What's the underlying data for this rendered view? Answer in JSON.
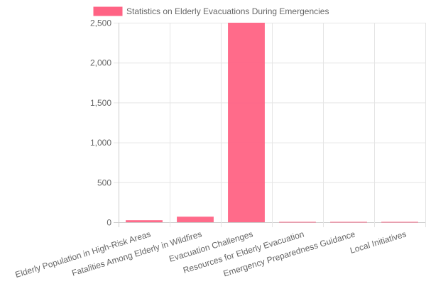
{
  "chart_data": {
    "type": "bar",
    "title": "",
    "legend": {
      "label": "Statistics on Elderly Evacuations During Emergencies",
      "position": "top"
    },
    "categories": [
      "Elderly Population in High-Risk Areas",
      "Fatalities Among Elderly in Wildfires",
      "Evacuation Challenges",
      "Resources for Elderly Evacuation",
      "Emergency Preparedness Guidance",
      "Local Initiatives"
    ],
    "values": [
      25,
      70,
      2500,
      5,
      5,
      5
    ],
    "ylim": [
      0,
      2500
    ],
    "yticks": [
      0,
      500,
      1000,
      1500,
      2000,
      2500
    ],
    "ytick_labels": [
      "0",
      "500",
      "1,000",
      "1,500",
      "2,000",
      "2,500"
    ],
    "grid": true,
    "color": "#ff6384",
    "xlabel": "",
    "ylabel": ""
  }
}
